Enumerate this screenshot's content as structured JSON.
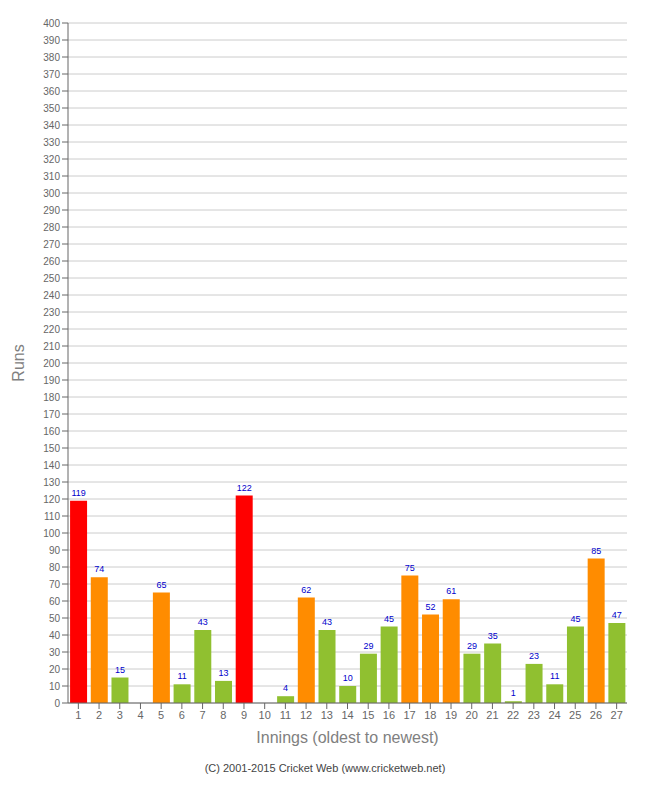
{
  "chart_data": {
    "type": "bar",
    "categories": [
      "1",
      "2",
      "3",
      "4",
      "5",
      "6",
      "7",
      "8",
      "9",
      "10",
      "11",
      "12",
      "13",
      "14",
      "15",
      "16",
      "17",
      "18",
      "19",
      "20",
      "21",
      "22",
      "23",
      "24",
      "25",
      "26",
      "27"
    ],
    "values": [
      119,
      74,
      15,
      0,
      65,
      11,
      43,
      13,
      122,
      0,
      4,
      62,
      43,
      10,
      29,
      45,
      75,
      52,
      61,
      29,
      35,
      1,
      23,
      11,
      45,
      85,
      47
    ],
    "colors": [
      "#ff0000",
      "#ff8c00",
      "#90c030",
      "#90c030",
      "#ff8c00",
      "#90c030",
      "#90c030",
      "#90c030",
      "#ff0000",
      "#90c030",
      "#90c030",
      "#ff8c00",
      "#90c030",
      "#90c030",
      "#90c030",
      "#90c030",
      "#ff8c00",
      "#ff8c00",
      "#ff8c00",
      "#90c030",
      "#90c030",
      "#90c030",
      "#90c030",
      "#90c030",
      "#90c030",
      "#ff8c00",
      "#90c030"
    ],
    "xlabel": "Innings (oldest to newest)",
    "ylabel": "Runs",
    "ylim": [
      0,
      400
    ],
    "yticks": [
      0,
      10,
      20,
      30,
      40,
      50,
      60,
      70,
      80,
      90,
      100,
      110,
      120,
      130,
      140,
      150,
      160,
      170,
      180,
      190,
      200,
      210,
      220,
      230,
      240,
      250,
      260,
      270,
      280,
      290,
      300,
      310,
      320,
      330,
      340,
      350,
      360,
      370,
      380,
      390,
      400
    ],
    "grid": true,
    "data_labels": true,
    "annotations": [
      "(C) 2001-2015 Cricket Web (www.cricketweb.net)"
    ]
  }
}
